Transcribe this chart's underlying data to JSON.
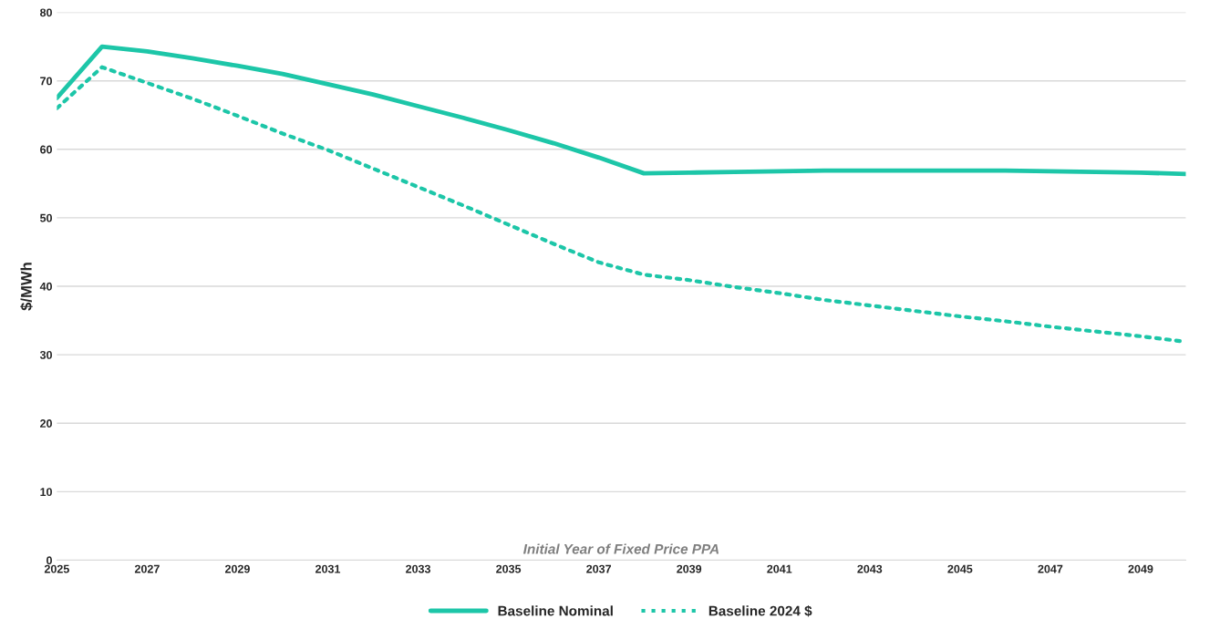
{
  "chart_data": {
    "type": "line",
    "xlabel": "Initial Year of Fixed Price PPA",
    "ylabel": "$/MWh",
    "x": [
      2025,
      2026,
      2027,
      2028,
      2029,
      2030,
      2031,
      2032,
      2033,
      2034,
      2035,
      2036,
      2037,
      2038,
      2039,
      2040,
      2041,
      2042,
      2043,
      2044,
      2045,
      2046,
      2047,
      2048,
      2049,
      2050
    ],
    "series": [
      {
        "name": "Baseline Nominal",
        "color": "#1dc6a8",
        "line_style": "solid",
        "values": [
          67.5,
          75.0,
          74.3,
          73.3,
          72.2,
          71.0,
          69.5,
          68.0,
          66.3,
          64.6,
          62.8,
          60.9,
          58.8,
          56.5,
          56.6,
          56.7,
          56.8,
          56.9,
          56.9,
          56.9,
          56.9,
          56.9,
          56.8,
          56.7,
          56.6,
          56.4
        ]
      },
      {
        "name": "Baseline 2024 $",
        "color": "#1dc6a8",
        "line_style": "dotted",
        "values": [
          66.0,
          72.0,
          69.7,
          67.4,
          64.9,
          62.3,
          59.9,
          57.2,
          54.5,
          51.8,
          49.0,
          46.2,
          43.5,
          41.7,
          40.9,
          39.9,
          39.0,
          38.0,
          37.2,
          36.4,
          35.6,
          34.9,
          34.1,
          33.4,
          32.7,
          31.9
        ]
      }
    ],
    "xlim": [
      2025,
      2050
    ],
    "xticks": [
      2025,
      2027,
      2029,
      2031,
      2033,
      2035,
      2037,
      2039,
      2041,
      2043,
      2045,
      2047,
      2049
    ],
    "ylim": [
      0,
      80
    ],
    "yticks": [
      0,
      10,
      20,
      30,
      40,
      50,
      60,
      70,
      80
    ],
    "grid": "y",
    "legend": "bottom"
  }
}
